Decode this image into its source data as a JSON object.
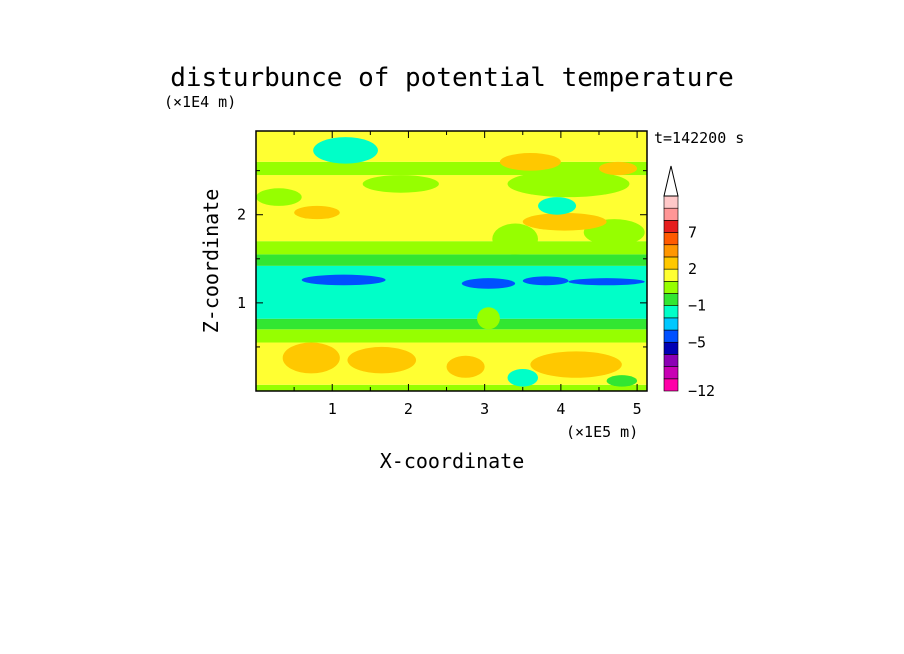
{
  "chart_data": {
    "type": "heatmap",
    "title": "disturbunce of potential temperature",
    "xlabel": "X-coordinate",
    "ylabel": "Z-coordinate",
    "x_unit_label": "(×1E5 m)",
    "y_unit_label": "(×1E4 m)",
    "time_label": "t=142200 s",
    "xlim": [
      0,
      5.13
    ],
    "ylim": [
      0,
      2.95
    ],
    "x_ticks": [
      1,
      2,
      3,
      4,
      5
    ],
    "y_ticks": [
      1,
      2
    ],
    "x_tick_labels": [
      "1",
      "2",
      "3",
      "4",
      "5"
    ],
    "y_tick_labels": [
      "1",
      "2"
    ],
    "colorbar": {
      "levels": [
        -12,
        -11,
        -9,
        -7,
        -5,
        -4,
        -3,
        -1,
        0,
        1,
        2,
        4,
        5,
        7,
        9,
        11
      ],
      "colors": [
        "#ff00a8",
        "#c800b4",
        "#8c00b4",
        "#0000b4",
        "#0050ff",
        "#00c8ff",
        "#00ffc8",
        "#32e632",
        "#96ff00",
        "#ffff32",
        "#ffc800",
        "#ff9600",
        "#ff5a00",
        "#e61e1e",
        "#ff9696",
        "#ffc8c8"
      ],
      "tick_labels": [
        "7",
        "2",
        "−1",
        "−5",
        "−12"
      ],
      "tick_values": [
        7,
        2,
        -1,
        -5,
        -12
      ],
      "extend": "max"
    },
    "bands": [
      {
        "z": [
          0.0,
          0.07
        ],
        "value": 0.5
      },
      {
        "z": [
          0.07,
          0.55
        ],
        "value": 1.5
      },
      {
        "z": [
          0.55,
          0.7
        ],
        "value": 0.5
      },
      {
        "z": [
          0.7,
          0.82
        ],
        "value": -0.5
      },
      {
        "z": [
          0.82,
          1.42
        ],
        "value": -2
      },
      {
        "z": [
          1.42,
          1.55
        ],
        "value": -0.5
      },
      {
        "z": [
          1.55,
          1.7
        ],
        "value": 0.5
      },
      {
        "z": [
          1.7,
          2.45
        ],
        "value": 1.5
      },
      {
        "z": [
          2.45,
          2.6
        ],
        "value": 0.5
      },
      {
        "z": [
          2.6,
          2.95
        ],
        "value": 1.5
      }
    ],
    "patches": [
      {
        "x": [
          0.35,
          1.1
        ],
        "z": [
          0.2,
          0.55
        ],
        "value": 3
      },
      {
        "x": [
          1.2,
          2.1
        ],
        "z": [
          0.2,
          0.5
        ],
        "value": 3
      },
      {
        "x": [
          2.5,
          3.0
        ],
        "z": [
          0.15,
          0.4
        ],
        "value": 3
      },
      {
        "x": [
          3.6,
          4.8
        ],
        "z": [
          0.15,
          0.45
        ],
        "value": 3
      },
      {
        "x": [
          3.3,
          3.7
        ],
        "z": [
          0.05,
          0.25
        ],
        "value": -2
      },
      {
        "x": [
          4.6,
          5.0
        ],
        "z": [
          0.05,
          0.18
        ],
        "value": -0.5
      },
      {
        "x": [
          0.6,
          1.7
        ],
        "z": [
          1.2,
          1.32
        ],
        "value": -4.5
      },
      {
        "x": [
          2.7,
          3.4
        ],
        "z": [
          1.16,
          1.28
        ],
        "value": -4.5
      },
      {
        "x": [
          3.5,
          4.1
        ],
        "z": [
          1.2,
          1.3
        ],
        "value": -4.5
      },
      {
        "x": [
          4.1,
          5.1
        ],
        "z": [
          1.2,
          1.28
        ],
        "value": -4.5
      },
      {
        "x": [
          2.9,
          3.2
        ],
        "z": [
          0.7,
          0.95
        ],
        "value": 0.5
      },
      {
        "x": [
          3.3,
          4.9
        ],
        "z": [
          2.2,
          2.5
        ],
        "value": 0.5
      },
      {
        "x": [
          3.1,
          3.7
        ],
        "z": [
          1.55,
          1.9
        ],
        "value": 0.5
      },
      {
        "x": [
          4.3,
          5.1
        ],
        "z": [
          1.65,
          1.95
        ],
        "value": 0.5
      },
      {
        "x": [
          3.5,
          4.6
        ],
        "z": [
          1.82,
          2.02
        ],
        "value": 3
      },
      {
        "x": [
          0.75,
          1.6
        ],
        "z": [
          2.58,
          2.88
        ],
        "value": -2
      },
      {
        "x": [
          3.7,
          4.2
        ],
        "z": [
          2.0,
          2.2
        ],
        "value": -2
      },
      {
        "x": [
          0.5,
          1.1
        ],
        "z": [
          1.95,
          2.1
        ],
        "value": 3
      },
      {
        "x": [
          3.2,
          4.0
        ],
        "z": [
          2.5,
          2.7
        ],
        "value": 3
      },
      {
        "x": [
          4.5,
          5.0
        ],
        "z": [
          2.45,
          2.6
        ],
        "value": 3
      },
      {
        "x": [
          0.0,
          0.6
        ],
        "z": [
          2.1,
          2.3
        ],
        "value": 0.5
      },
      {
        "x": [
          1.4,
          2.4
        ],
        "z": [
          2.25,
          2.45
        ],
        "value": 0.5
      }
    ]
  }
}
